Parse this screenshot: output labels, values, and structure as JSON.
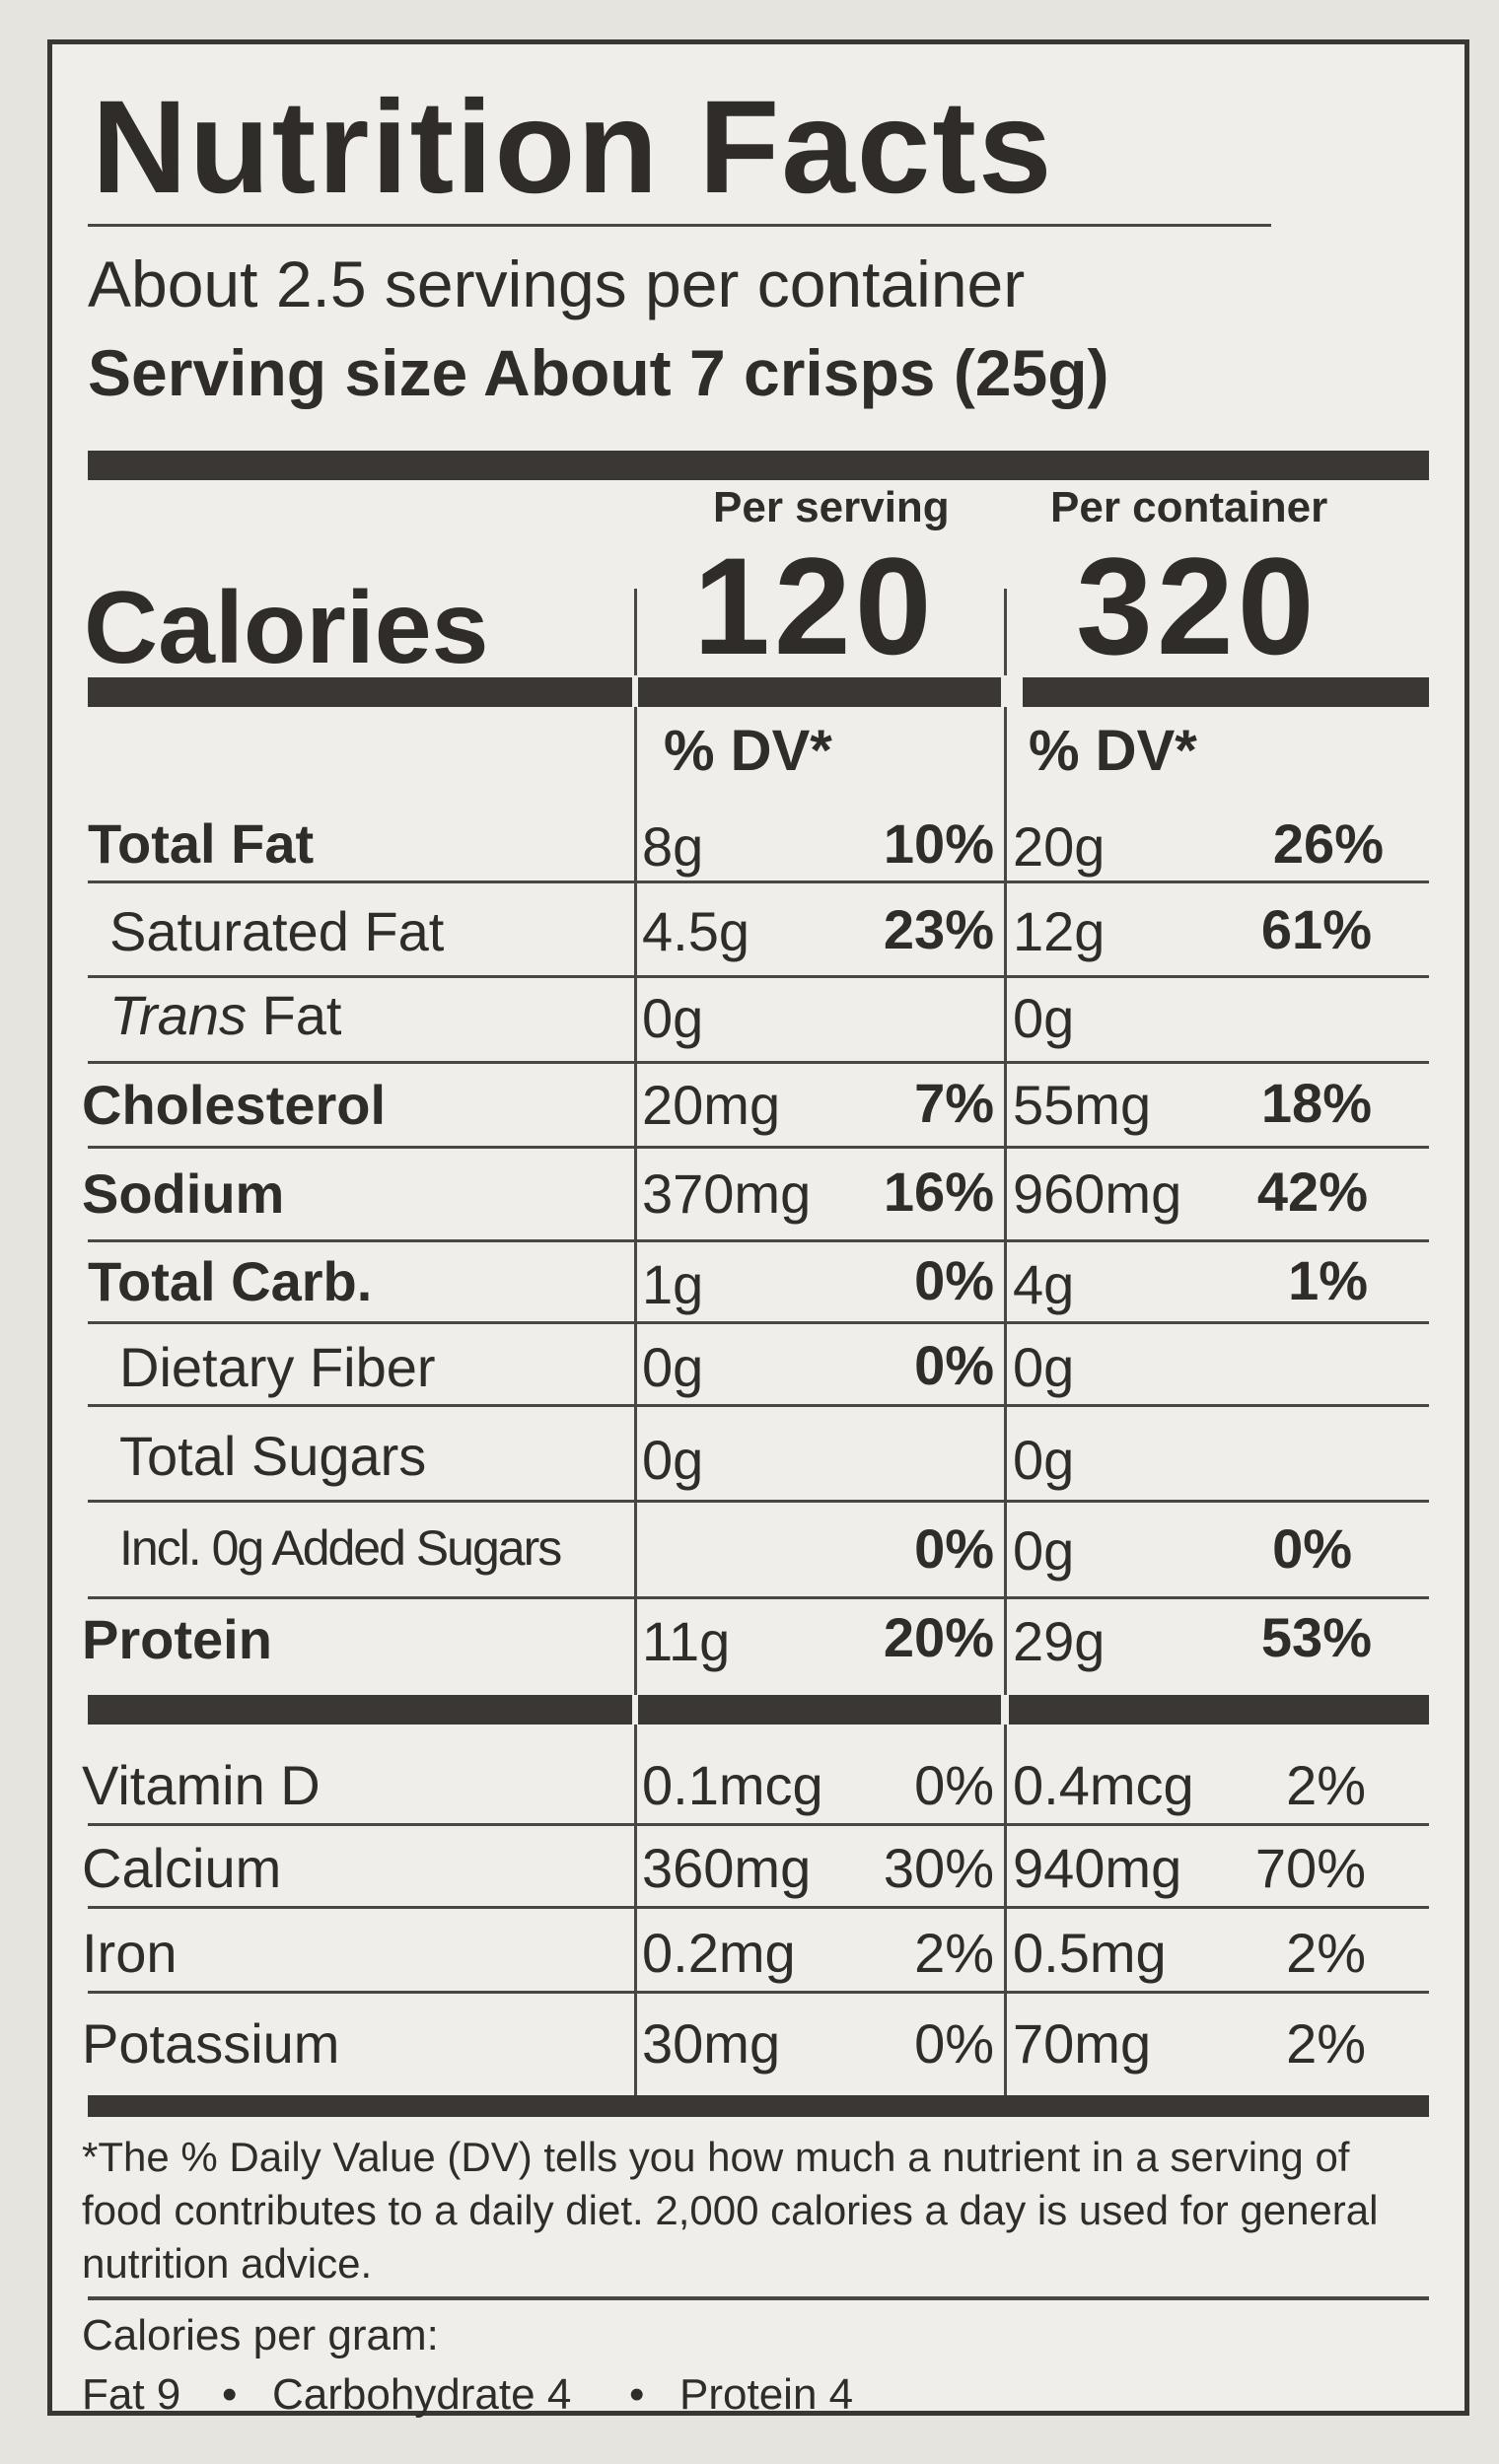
{
  "title": "Nutrition Facts",
  "servings_per_container": "About 2.5 servings per container",
  "serving_size": "Serving size About 7 crisps (25g)",
  "columns": {
    "per_serving": "Per serving",
    "per_container": "Per container"
  },
  "calories": {
    "label": "Calories",
    "per_serving": "120",
    "per_container": "320"
  },
  "dv_header": "% DV*",
  "nutrients": [
    {
      "name": "Total Fat",
      "serving_amount": "8g",
      "serving_dv": "10%",
      "container_amount": "20g",
      "container_dv": "26%"
    },
    {
      "name": "Saturated Fat",
      "serving_amount": "4.5g",
      "serving_dv": "23%",
      "container_amount": "12g",
      "container_dv": "61%"
    },
    {
      "name": "Fat",
      "name_prefix": "Trans",
      "serving_amount": "0g",
      "serving_dv": "",
      "container_amount": "0g",
      "container_dv": ""
    },
    {
      "name": "Cholesterol",
      "serving_amount": "20mg",
      "serving_dv": "7%",
      "container_amount": "55mg",
      "container_dv": "18%"
    },
    {
      "name": "Sodium",
      "serving_amount": "370mg",
      "serving_dv": "16%",
      "container_amount": "960mg",
      "container_dv": "42%"
    },
    {
      "name": "Total Carb.",
      "serving_amount": "1g",
      "serving_dv": "0%",
      "container_amount": "4g",
      "container_dv": "1%"
    },
    {
      "name": "Dietary Fiber",
      "serving_amount": "0g",
      "serving_dv": "0%",
      "container_amount": "0g",
      "container_dv": ""
    },
    {
      "name": "Total Sugars",
      "serving_amount": "0g",
      "serving_dv": "",
      "container_amount": "0g",
      "container_dv": ""
    },
    {
      "name": "Incl. 0g Added Sugars",
      "serving_amount": "",
      "serving_dv": "0%",
      "container_amount": "0g",
      "container_dv": "0%"
    },
    {
      "name": "Protein",
      "serving_amount": "11g",
      "serving_dv": "20%",
      "container_amount": "29g",
      "container_dv": "53%"
    }
  ],
  "vitamins": [
    {
      "name": "Vitamin D",
      "serving_amount": "0.1mcg",
      "serving_dv": "0%",
      "container_amount": "0.4mcg",
      "container_dv": "2%"
    },
    {
      "name": "Calcium",
      "serving_amount": "360mg",
      "serving_dv": "30%",
      "container_amount": "940mg",
      "container_dv": "70%"
    },
    {
      "name": "Iron",
      "serving_amount": "0.2mg",
      "serving_dv": "2%",
      "container_amount": "0.5mg",
      "container_dv": "2%"
    },
    {
      "name": "Potassium",
      "serving_amount": "30mg",
      "serving_dv": "0%",
      "container_amount": "70mg",
      "container_dv": "2%"
    }
  ],
  "footnote": "*The % Daily Value (DV) tells you how much a nutrient in a serving of food contributes to a daily diet. 2,000 calories a day is used for general nutrition advice.",
  "calories_per_gram": {
    "label": "Calories per gram:",
    "fat": "Fat 9",
    "carbohydrate": "Carbohydrate 4",
    "protein": "Protein 4",
    "separator": "•"
  }
}
